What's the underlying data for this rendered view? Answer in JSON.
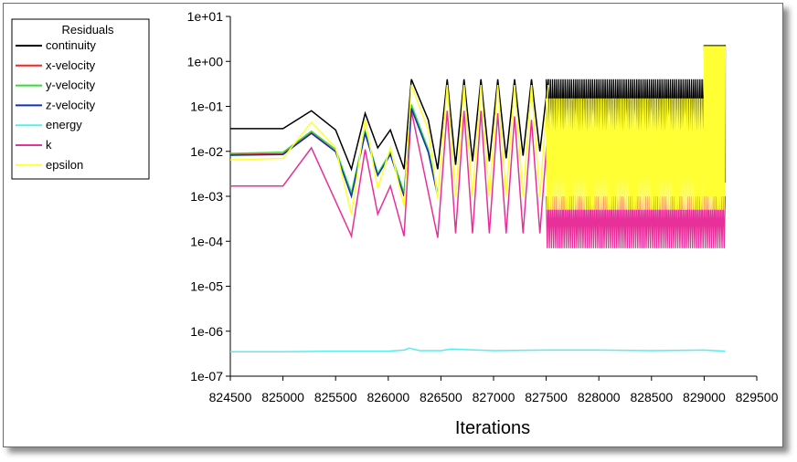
{
  "chart_data": {
    "type": "line",
    "title": "",
    "xlabel": "Iterations",
    "ylabel": "",
    "yscale": "log",
    "xlim": [
      824500,
      829500
    ],
    "ylim": [
      1e-07,
      10
    ],
    "x_ticks": [
      "824500",
      "825000",
      "825500",
      "826000",
      "826500",
      "827000",
      "827500",
      "828000",
      "828500",
      "829000",
      "829500"
    ],
    "y_ticks": [
      "1e+01",
      "1e+00",
      "1e-01",
      "1e-02",
      "1e-03",
      "1e-04",
      "1e-05",
      "1e-06",
      "1e-07"
    ],
    "legend": {
      "title": "Residuals",
      "placement": "top-left",
      "entries": [
        {
          "name": "continuity",
          "color": "#000000"
        },
        {
          "name": "x-velocity",
          "color": "#ff2020"
        },
        {
          "name": "y-velocity",
          "color": "#33dd33"
        },
        {
          "name": "z-velocity",
          "color": "#1030c0"
        },
        {
          "name": "energy",
          "color": "#55eeee"
        },
        {
          "name": "k",
          "color": "#e8309a"
        },
        {
          "name": "epsilon",
          "color": "#ffff33"
        }
      ]
    },
    "series": [
      {
        "name": "continuity",
        "color": "#000000",
        "x": [
          824500,
          825000,
          825270,
          825500,
          825650,
          825780,
          825900,
          826020,
          826150,
          826220,
          826380,
          826470,
          826560,
          826640,
          826720,
          826800,
          826880,
          826960,
          827040,
          827120,
          827200,
          827280,
          827360,
          827440,
          827520
        ],
        "y": [
          0.032,
          0.032,
          0.08,
          0.03,
          0.004,
          0.07,
          0.012,
          0.03,
          0.004,
          0.4,
          0.05,
          0.004,
          0.4,
          0.005,
          0.4,
          0.006,
          0.4,
          0.006,
          0.4,
          0.007,
          0.4,
          0.008,
          0.4,
          0.01,
          0.4
        ],
        "band": {
          "x_start": 827500,
          "x_end": 829000,
          "low": 0.03,
          "high": 0.4
        },
        "band2": {
          "x_start": 829000,
          "x_end": 829200,
          "low": 1.0,
          "high": 2.3
        },
        "end": {
          "x": 829200,
          "y": 0.002
        }
      },
      {
        "name": "x-velocity",
        "color": "#ff2020",
        "x": [
          824500,
          825000,
          825270,
          825500,
          825650,
          825780,
          825900,
          826020,
          826150,
          826220,
          826380,
          826470
        ],
        "y": [
          0.0085,
          0.0088,
          0.026,
          0.01,
          0.0011,
          0.026,
          0.003,
          0.009,
          0.0011,
          0.1,
          0.01,
          0.0011
        ]
      },
      {
        "name": "y-velocity",
        "color": "#33dd33",
        "x": [
          824500,
          825000,
          825270,
          825500,
          825650,
          825780,
          825900,
          826020,
          826150,
          826220,
          826380,
          826470
        ],
        "y": [
          0.009,
          0.0095,
          0.028,
          0.011,
          0.0012,
          0.028,
          0.0032,
          0.0095,
          0.0012,
          0.11,
          0.011,
          0.0012
        ]
      },
      {
        "name": "z-velocity",
        "color": "#1030c0",
        "x": [
          824500,
          825000,
          825270,
          825500,
          825650,
          825780,
          825900,
          826020,
          826150,
          826220,
          826380,
          826470
        ],
        "y": [
          0.0082,
          0.0085,
          0.025,
          0.0098,
          0.001,
          0.025,
          0.0029,
          0.0085,
          0.001,
          0.09,
          0.0095,
          0.001
        ]
      },
      {
        "name": "energy",
        "color": "#55eeee",
        "x": [
          824500,
          825000,
          825500,
          826000,
          826150,
          826200,
          826300,
          826500,
          826600,
          827000,
          827500,
          828000,
          828500,
          829000,
          829200
        ],
        "y": [
          3.5e-07,
          3.5e-07,
          3.6e-07,
          3.6e-07,
          3.8e-07,
          4.2e-07,
          3.7e-07,
          3.7e-07,
          4e-07,
          3.7e-07,
          3.8e-07,
          3.8e-07,
          3.7e-07,
          3.8e-07,
          3.6e-07
        ]
      },
      {
        "name": "k",
        "color": "#e8309a",
        "x": [
          824500,
          825000,
          825270,
          825650,
          825780,
          825900,
          826020,
          826150,
          826220,
          826470,
          826560,
          826640,
          826720,
          826800,
          826880,
          826960,
          827040,
          827120,
          827200,
          827280,
          827360,
          827440,
          827520
        ],
        "y": [
          0.0017,
          0.0017,
          0.012,
          0.00013,
          0.011,
          0.0004,
          0.0017,
          0.00013,
          0.08,
          0.00012,
          0.08,
          0.00015,
          0.08,
          0.00015,
          0.08,
          0.00015,
          0.07,
          0.00015,
          0.06,
          0.00015,
          0.05,
          0.00015,
          0.04
        ],
        "band": {
          "x_start": 827500,
          "x_end": 829200,
          "low": 7e-05,
          "high": 0.001
        }
      },
      {
        "name": "epsilon",
        "color": "#ffff33",
        "x": [
          824500,
          825000,
          825270,
          825500,
          825650,
          825780,
          825900,
          826020,
          826150,
          826220,
          826380,
          826470,
          826560,
          826640,
          826720,
          826800,
          826880,
          826960,
          827040,
          827120,
          827200,
          827280,
          827360,
          827440,
          827520
        ],
        "y": [
          0.0065,
          0.007,
          0.045,
          0.012,
          0.0004,
          0.05,
          0.0015,
          0.012,
          0.0006,
          0.3,
          0.03,
          0.0009,
          0.3,
          0.001,
          0.3,
          0.001,
          0.3,
          0.001,
          0.3,
          0.001,
          0.3,
          0.001,
          0.3,
          0.001,
          0.3
        ],
        "band": {
          "x_start": 827500,
          "x_end": 829200,
          "low": 0.0005,
          "high": 0.15
        },
        "band2": {
          "x_start": 829000,
          "x_end": 829200,
          "low": 0.001,
          "high": 2.2
        }
      }
    ]
  }
}
